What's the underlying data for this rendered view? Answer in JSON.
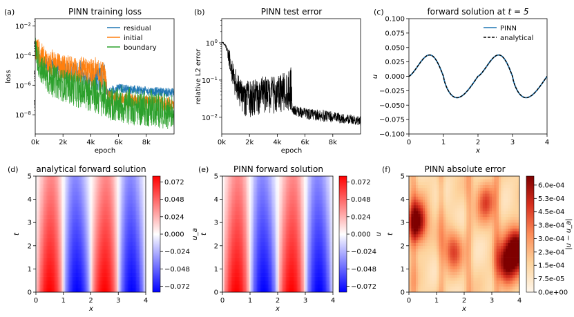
{
  "chart_data": [
    {
      "id": "a",
      "type": "line",
      "panel_label": "(a)",
      "title": "PINN training loss",
      "xlabel": "epoch",
      "ylabel": "loss",
      "xscale": "linear",
      "yscale": "log",
      "xlim": [
        0,
        10000
      ],
      "ylim_exp": [
        -9.3,
        -1.5
      ],
      "xticks": [
        0,
        2000,
        4000,
        6000,
        8000
      ],
      "xtick_labels": [
        "0k",
        "2k",
        "4k",
        "6k",
        "8k"
      ],
      "yticks_exp": [
        -8,
        -6,
        -4,
        -2
      ],
      "ytick_labels": [
        "10^-8",
        "10^-6",
        "10^-4",
        "10^-2"
      ],
      "legend": "top-right",
      "series": [
        {
          "name": "residual",
          "color": "#1f77b4",
          "x": [
            0,
            200,
            500,
            1000,
            2000,
            3000,
            4000,
            5000,
            5200,
            6000,
            8000,
            10000
          ],
          "log10_values": [
            -3.5,
            -4.0,
            -4.4,
            -4.8,
            -5.0,
            -5.2,
            -5.3,
            -5.5,
            -6.5,
            -6.2,
            -6.4,
            -6.5
          ],
          "log10_spread": [
            0.6,
            0.6,
            0.6,
            0.6,
            0.6,
            0.7,
            1.0,
            1.0,
            0.3,
            0.3,
            0.3,
            0.3
          ]
        },
        {
          "name": "initial",
          "color": "#ff7f0e",
          "x": [
            0,
            200,
            500,
            1000,
            2000,
            3000,
            4000,
            5000,
            5200,
            6000,
            8000,
            10000
          ],
          "log10_values": [
            -3.5,
            -3.8,
            -4.2,
            -4.6,
            -4.8,
            -5.0,
            -5.2,
            -5.4,
            -6.8,
            -7.0,
            -7.2,
            -7.3
          ],
          "log10_spread": [
            0.9,
            1.0,
            1.0,
            0.9,
            0.9,
            0.9,
            1.0,
            1.0,
            0.5,
            0.5,
            0.5,
            0.5
          ]
        },
        {
          "name": "boundary",
          "color": "#2ca02c",
          "x": [
            0,
            200,
            500,
            1000,
            2000,
            3000,
            4000,
            5000,
            5200,
            6000,
            8000,
            10000
          ],
          "log10_values": [
            -3.5,
            -4.3,
            -5.1,
            -5.6,
            -6.0,
            -6.3,
            -6.6,
            -6.9,
            -7.2,
            -7.4,
            -7.6,
            -7.8
          ],
          "log10_spread": [
            0.9,
            1.0,
            1.0,
            1.1,
            1.1,
            1.2,
            1.2,
            1.3,
            1.1,
            1.2,
            1.2,
            1.2
          ]
        }
      ]
    },
    {
      "id": "b",
      "type": "line",
      "panel_label": "(b)",
      "title": "PINN test error",
      "xlabel": "epoch",
      "ylabel": "relative L2 error",
      "xscale": "linear",
      "yscale": "log",
      "xlim": [
        0,
        10000
      ],
      "ylim_exp": [
        -2.45,
        0.65
      ],
      "xticks": [
        0,
        2000,
        4000,
        6000,
        8000
      ],
      "xtick_labels": [
        "0k",
        "2k",
        "4k",
        "6k",
        "8k"
      ],
      "yticks_exp": [
        -2,
        -1,
        0
      ],
      "ytick_labels": [
        "10^-2",
        "10^-1",
        "10^0"
      ],
      "series": [
        {
          "name": "test error",
          "color": "#000000",
          "x": [
            0,
            100,
            300,
            600,
            1000,
            1500,
            2000,
            3000,
            4000,
            5000,
            5100,
            6000,
            7000,
            8000,
            9000,
            10000
          ],
          "log10_values": [
            0.0,
            0.0,
            -0.1,
            -0.5,
            -1.1,
            -1.5,
            -1.5,
            -1.4,
            -1.4,
            -1.2,
            -1.8,
            -1.9,
            -1.95,
            -2.0,
            -2.05,
            -2.1
          ],
          "log10_spread": [
            0.02,
            0.02,
            0.05,
            0.3,
            0.4,
            0.45,
            0.5,
            0.5,
            0.5,
            0.6,
            0.12,
            0.15,
            0.15,
            0.15,
            0.12,
            0.12
          ]
        }
      ]
    },
    {
      "id": "c",
      "type": "line",
      "panel_label": "(c)",
      "title": "forward solution at t = 5",
      "title_main": "forward solution at",
      "title_math": "t = 5",
      "xlabel": "x",
      "ylabel": "u",
      "xlim": [
        0,
        4
      ],
      "ylim": [
        -0.1,
        0.1
      ],
      "xticks": [
        0,
        1,
        2,
        3,
        4
      ],
      "yticks": [
        -0.1,
        -0.075,
        -0.05,
        -0.025,
        0.0,
        0.025,
        0.05,
        0.075,
        0.1
      ],
      "ytick_labels": [
        "−0.100",
        "−0.075",
        "−0.050",
        "−0.025",
        "0.000",
        "0.025",
        "0.050",
        "0.075",
        "0.100"
      ],
      "legend": "top-right",
      "series": [
        {
          "name": "PINN",
          "color": "#1f77b4",
          "style": "solid",
          "function": "0.037*sin(pi*x)*shape",
          "x": [
            0,
            0.25,
            0.5,
            0.68,
            1.0,
            1.32,
            1.5,
            1.75,
            2.0,
            2.25,
            2.5,
            2.68,
            3.0,
            3.32,
            3.5,
            3.75,
            4.0
          ],
          "y": [
            0.0,
            0.02,
            0.033,
            0.037,
            0.0,
            -0.037,
            -0.033,
            -0.02,
            0.0,
            0.02,
            0.033,
            0.037,
            0.0,
            -0.037,
            -0.033,
            -0.02,
            0.0
          ]
        },
        {
          "name": "analytical",
          "color": "#000000",
          "style": "dashed",
          "x": [
            0,
            0.25,
            0.5,
            0.68,
            1.0,
            1.32,
            1.5,
            1.75,
            2.0,
            2.25,
            2.5,
            2.68,
            3.0,
            3.32,
            3.5,
            3.75,
            4.0
          ],
          "y": [
            0.0,
            0.02,
            0.033,
            0.037,
            0.0,
            -0.037,
            -0.033,
            -0.02,
            0.0,
            0.02,
            0.033,
            0.037,
            0.0,
            -0.037,
            -0.033,
            -0.02,
            0.0
          ]
        }
      ]
    },
    {
      "id": "d",
      "type": "heatmap",
      "panel_label": "(d)",
      "title": "analytical forward solution",
      "xlabel": "x",
      "ylabel": "t",
      "xlim": [
        0,
        4
      ],
      "ylim": [
        0,
        5
      ],
      "xticks": [
        0,
        1,
        2,
        3,
        4
      ],
      "yticks": [
        0,
        1,
        2,
        3,
        4,
        5
      ],
      "colormap": "bwr",
      "vmin": -0.08,
      "vmax": 0.08,
      "colorbar_label": "u_a",
      "colorbar_ticks": [
        0.072,
        0.048,
        0.024,
        0.0,
        -0.024,
        -0.048,
        -0.072
      ],
      "colorbar_tick_labels": [
        "0.072",
        "0.048",
        "0.024",
        "0.000",
        "−0.024",
        "−0.048",
        "−0.072"
      ],
      "field": "u(x,t) = A(t) * sin(pi x) shaped, peaks near x=0.7,2.7 and troughs near x=1.3,3.3; amplitude ~0.08 at t=0 decaying to ~0.037 at t=5"
    },
    {
      "id": "e",
      "type": "heatmap",
      "panel_label": "(e)",
      "title": "PINN forward solution",
      "xlabel": "x",
      "ylabel": "t",
      "xlim": [
        0,
        4
      ],
      "ylim": [
        0,
        5
      ],
      "xticks": [
        0,
        1,
        2,
        3,
        4
      ],
      "yticks": [
        0,
        1,
        2,
        3,
        4,
        5
      ],
      "colormap": "bwr",
      "vmin": -0.08,
      "vmax": 0.08,
      "colorbar_label": "u",
      "colorbar_ticks": [
        0.072,
        0.048,
        0.024,
        0.0,
        -0.024,
        -0.048,
        -0.072
      ],
      "colorbar_tick_labels": [
        "0.072",
        "0.048",
        "0.024",
        "0.000",
        "−0.024",
        "−0.048",
        "−0.072"
      ]
    },
    {
      "id": "f",
      "type": "heatmap",
      "panel_label": "(f)",
      "title": "PINN absolute error",
      "xlabel": "x",
      "ylabel": "t",
      "xlim": [
        0,
        4
      ],
      "ylim": [
        0,
        5
      ],
      "xticks": [
        0,
        1,
        2,
        3,
        4
      ],
      "yticks": [
        0,
        1,
        2,
        3,
        4,
        5
      ],
      "colormap": "OrRd",
      "vmin": 0.0,
      "vmax": 0.00065,
      "colorbar_label": "|u − u_a|",
      "colorbar_ticks": [
        0.0006,
        0.000525,
        0.00045,
        0.000375,
        0.0003,
        0.000225,
        0.00015,
        7.5e-05,
        0.0
      ],
      "colorbar_tick_labels": [
        "6.0e-04",
        "5.3e-04",
        "4.5e-04",
        "3.8e-04",
        "3.0e-04",
        "2.3e-04",
        "1.5e-04",
        "7.5e-05",
        "0.0e+00"
      ],
      "hotspots": [
        {
          "x": 0.3,
          "t": 3.0,
          "value": 0.00055
        },
        {
          "x": 3.9,
          "t": 1.9,
          "value": 0.00062
        },
        {
          "x": 3.5,
          "t": 1.2,
          "value": 0.0005
        },
        {
          "x": 1.6,
          "t": 1.8,
          "value": 0.0003
        },
        {
          "x": 2.8,
          "t": 3.9,
          "value": 0.0003
        }
      ]
    }
  ]
}
